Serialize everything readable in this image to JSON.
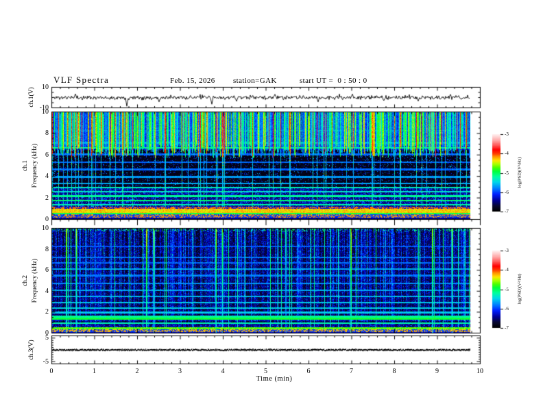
{
  "header": {
    "title": "VLF Spectra",
    "date": "Feb. 15, 2026",
    "station": "station=GAK",
    "start_ut": "start UT =  0 : 50 : 0"
  },
  "axes": {
    "x": {
      "label": "Time (min)",
      "ticks": [
        0,
        1,
        2,
        3,
        4,
        5,
        6,
        7,
        8,
        9,
        10
      ],
      "minor_step": 0.2,
      "range": [
        0,
        10
      ]
    },
    "ch1_voltage": {
      "label": "ch.1(V)",
      "ticks": [
        10,
        -10
      ],
      "range": [
        -10,
        10
      ]
    },
    "ch1_spec": {
      "channel": "ch.1",
      "label": "Frequency (kHz)",
      "ticks": [
        10,
        8,
        6,
        4,
        2,
        0
      ],
      "range": [
        0,
        10
      ]
    },
    "ch2_spec": {
      "channel": "ch.2",
      "label": "Frequency (kHz)",
      "ticks": [
        10,
        8,
        6,
        4,
        2,
        0
      ],
      "range": [
        0,
        10
      ]
    },
    "ch3_voltage": {
      "label": "ch.3(V)",
      "ticks": [
        5,
        -5
      ],
      "range": [
        -5,
        5
      ]
    }
  },
  "colorbar": {
    "label": "log(PSD)(V²/Hz)",
    "ticks": [
      -3,
      -4,
      -5,
      -6,
      -7
    ],
    "range": [
      -7,
      -3
    ],
    "stops": [
      [
        0,
        "#000000"
      ],
      [
        0.07,
        "#080832"
      ],
      [
        0.14,
        "#000096"
      ],
      [
        0.22,
        "#001eff"
      ],
      [
        0.3,
        "#0082ff"
      ],
      [
        0.38,
        "#00d7eb"
      ],
      [
        0.45,
        "#00ffa0"
      ],
      [
        0.52,
        "#00ff3c"
      ],
      [
        0.57,
        "#50ff00"
      ],
      [
        0.62,
        "#b4ff00"
      ],
      [
        0.66,
        "#ffe600"
      ],
      [
        0.71,
        "#ff9600"
      ],
      [
        0.75,
        "#ff3c00"
      ],
      [
        0.8,
        "#ff0000"
      ],
      [
        0.86,
        "#ff5a5a"
      ],
      [
        0.92,
        "#ffa5a5"
      ],
      [
        1,
        "#fff0f0"
      ]
    ]
  },
  "chart_data": [
    {
      "id": "ch1_waveform",
      "type": "line",
      "panel": "ch.1(V)",
      "xlabel": "Time (min)",
      "xlim": [
        0,
        10
      ],
      "ylim": [
        -10,
        10
      ],
      "data_end_min": 9.78,
      "mean_v": 0,
      "noise_amp_v": 1.9,
      "seed": 11,
      "description": "broadband noise trace centered on 0 V with occasional impulsive spikes",
      "spikes": [
        {
          "t": 0.55,
          "v": 3.5
        },
        {
          "t": 1.74,
          "v": -8.5
        },
        {
          "t": 2.5,
          "v": -4.2
        },
        {
          "t": 3.73,
          "v": -6.5
        },
        {
          "t": 4.3,
          "v": -3.6
        },
        {
          "t": 5.2,
          "v": 3.2
        },
        {
          "t": 6.2,
          "v": -4.2
        },
        {
          "t": 7.0,
          "v": 3.4
        },
        {
          "t": 8.55,
          "v": -3.4
        },
        {
          "t": 9.3,
          "v": 3.1
        }
      ]
    },
    {
      "id": "ch1_spectrogram",
      "type": "heatmap",
      "panel": "ch.1 Frequency (kHz)",
      "xlabel": "Time (min)",
      "xlim": [
        0,
        10
      ],
      "ylim": [
        0,
        10
      ],
      "zlim": [
        -7,
        -3
      ],
      "zlabel": "log(PSD)(V²/Hz)",
      "seed": 23,
      "profile": "ch1",
      "data_end_min": 9.78,
      "description": "bright sferic-filled zone 6.5-10 kHz with dense green/cyan vertical streaks, dark 3-6.5 kHz gap, blue speckle 1-3 kHz, dark-red line near 1 kHz, bright yellow-orange band 0.55-0.95 kHz, maroon speckled band below 0.4 kHz",
      "streaks": {
        "pow": 1.6,
        "max": 2.1,
        "deep_prob": 0.085,
        "deep_min": 2.1
      },
      "zone_bright": {
        "base": -6.35,
        "jitter": 0.45
      },
      "bands": [
        {
          "f": [
            6.5,
            10
          ],
          "base": -6.6,
          "jitter": 0.5
        },
        {
          "f": [
            3,
            6.5
          ],
          "base": -6.93,
          "jitter": 0.15,
          "speckle": {
            "p": 0.1,
            "add": [
              0.3,
              1.3
            ]
          },
          "deep_streak": 0.5
        },
        {
          "f": [
            1.15,
            3
          ],
          "base": -6.72,
          "jitter": 0.25,
          "speckle": {
            "p": 0.5,
            "add": [
              0.1,
              0.8
            ]
          },
          "deep_streak": 0.35
        },
        {
          "f": [
            0.95,
            1.15
          ],
          "base": -4.2,
          "jitter": 0.2,
          "mix": {
            "p": 0.55,
            "alt": -6.4
          }
        },
        {
          "f": [
            0.55,
            0.95
          ],
          "base": -4.55,
          "jitter": 0.45
        },
        {
          "f": [
            0.42,
            0.55
          ],
          "base": -5.15,
          "jitter": 0.4
        },
        {
          "f": [
            0.12,
            0.42
          ],
          "base": -4.3,
          "jitter": 0.25,
          "mix": {
            "p": 0.45,
            "alt": -6.2
          }
        },
        {
          "f": [
            0,
            0.12
          ],
          "base": -6.6,
          "jitter": 0.3
        }
      ],
      "h_lines": [
        [
          1.35,
          0.85
        ],
        [
          1.75,
          1.0
        ],
        [
          2.15,
          0.9
        ],
        [
          2.55,
          0.75
        ],
        [
          2.95,
          0.8
        ],
        [
          3.35,
          0.5
        ],
        [
          3.95,
          0.45
        ],
        [
          4.65,
          0.3
        ],
        [
          5.3,
          0.3
        ],
        [
          6.05,
          0.3
        ],
        [
          6.65,
          0.85
        ],
        [
          7.15,
          0.5
        ],
        [
          8.25,
          0.3
        ]
      ]
    },
    {
      "id": "ch2_spectrogram",
      "type": "heatmap",
      "panel": "ch.2 Frequency (kHz)",
      "xlabel": "Time (min)",
      "xlim": [
        0,
        10
      ],
      "ylim": [
        0,
        10
      ],
      "zlim": [
        -7,
        -3
      ],
      "zlabel": "log(PSD)(V²/Hz)",
      "seed": 41,
      "profile": "ch2",
      "data_end_min": 9.78,
      "description": "dark blue field with faint vertical sferic streaks fading below 4.5 kHz, horizontal cyan interference lines, bright yellow-green vertical events, green-yellow line near 0.4 kHz and dark-red line at the bottom edge",
      "streaks": {
        "pow": 2.2,
        "max": 1.5,
        "deep_prob": 0.05,
        "deep_min": 1.6
      },
      "bands": [
        {
          "f": [
            0.3,
            0.5
          ],
          "base": -4.95,
          "jitter": 0.45
        },
        {
          "f": [
            0.05,
            0.3
          ],
          "base": -4.35,
          "jitter": 0.2,
          "mix": {
            "p": 0.5,
            "alt": -6.2
          }
        },
        {
          "f": [
            0,
            0.05
          ],
          "base": -6.4,
          "jitter": 0.2
        },
        {
          "f": [
            0.5,
            10
          ],
          "base": -6.9,
          "jitter": 0.12,
          "speckle": {
            "p": 0.42,
            "add": [
              0.05,
              0.65
            ]
          },
          "streak_fade": true
        }
      ],
      "wide_bands": [
        {
          "f": [
            1.15,
            1.65
          ],
          "add": 0.55
        },
        {
          "f": [
            0.55,
            1.0
          ],
          "add": 0.35
        }
      ],
      "h_lines": [
        [
          0.9,
          0.85
        ],
        [
          1.35,
          1.15
        ],
        [
          1.55,
          0.9
        ],
        [
          1.95,
          0.6
        ],
        [
          2.35,
          0.65
        ],
        [
          2.9,
          0.6
        ],
        [
          3.5,
          0.55
        ],
        [
          4.1,
          0.5
        ],
        [
          4.75,
          0.4
        ],
        [
          5.5,
          0.35
        ],
        [
          6.1,
          0.5
        ],
        [
          6.7,
          0.3
        ],
        [
          7.25,
          0.35
        ],
        [
          8.3,
          0.25
        ]
      ],
      "bright_streaks": [
        {
          "t": 0.33,
          "s": 2.9
        },
        {
          "t": 0.56,
          "s": 2.4
        },
        {
          "t": 2.2,
          "s": 3.0
        },
        {
          "t": 2.37,
          "s": 2.5
        },
        {
          "t": 3.82,
          "s": 2.7
        },
        {
          "t": 3.97,
          "s": 2.3
        },
        {
          "t": 5.45,
          "s": 2.0
        },
        {
          "t": 6.97,
          "s": 2.9
        },
        {
          "t": 8.87,
          "s": 2.8
        },
        {
          "t": 9.33,
          "s": 2.4
        }
      ]
    },
    {
      "id": "ch3_waveform",
      "type": "line",
      "panel": "ch.3(V)",
      "xlabel": "Time (min)",
      "xlim": [
        0,
        10
      ],
      "ylim": [
        -5,
        5
      ],
      "data_end_min": 9.78,
      "value": 0,
      "style": "thick_stipple",
      "seed": 5,
      "description": "flat thick stippled trace at 0 V for the full record"
    }
  ]
}
